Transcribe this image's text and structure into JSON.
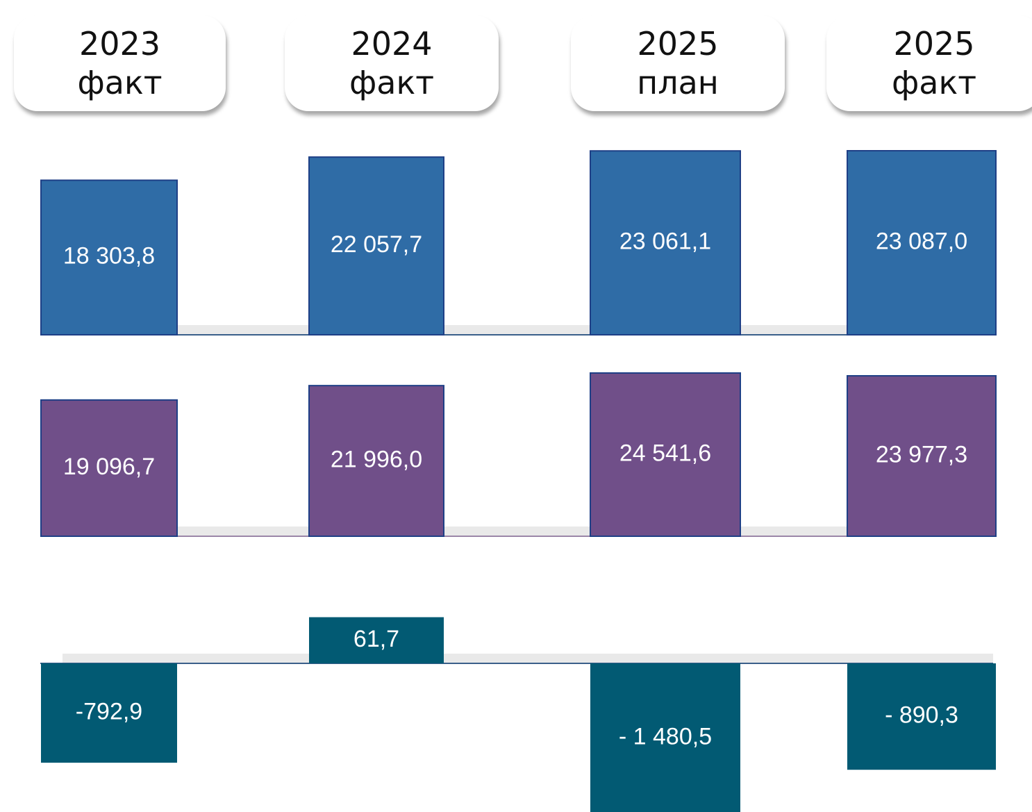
{
  "chart_data": {
    "type": "bar",
    "categories": [
      "2023\nфакт",
      "2024\nфакт",
      "2025\nплан",
      "2025\nфакт"
    ],
    "series": [
      {
        "color": "#2f6ca6",
        "values": [
          18303.8,
          22057.7,
          23061.1,
          23087.0
        ],
        "value_labels": [
          "18 303,8",
          "22 057,7",
          "23 061,1",
          "23 087,0"
        ]
      },
      {
        "color": "#704f89",
        "values": [
          19096.7,
          21996.0,
          24541.6,
          23977.3
        ],
        "value_labels": [
          "19 096,7",
          "21 996,0",
          "24 541,6",
          "23 977,3"
        ]
      },
      {
        "color": "#025a73",
        "values": [
          -792.9,
          61.7,
          -1480.5,
          -890.3
        ],
        "value_labels": [
          "-792,9",
          "61,7",
          "- 1 480,5",
          "- 890,3"
        ]
      }
    ]
  }
}
